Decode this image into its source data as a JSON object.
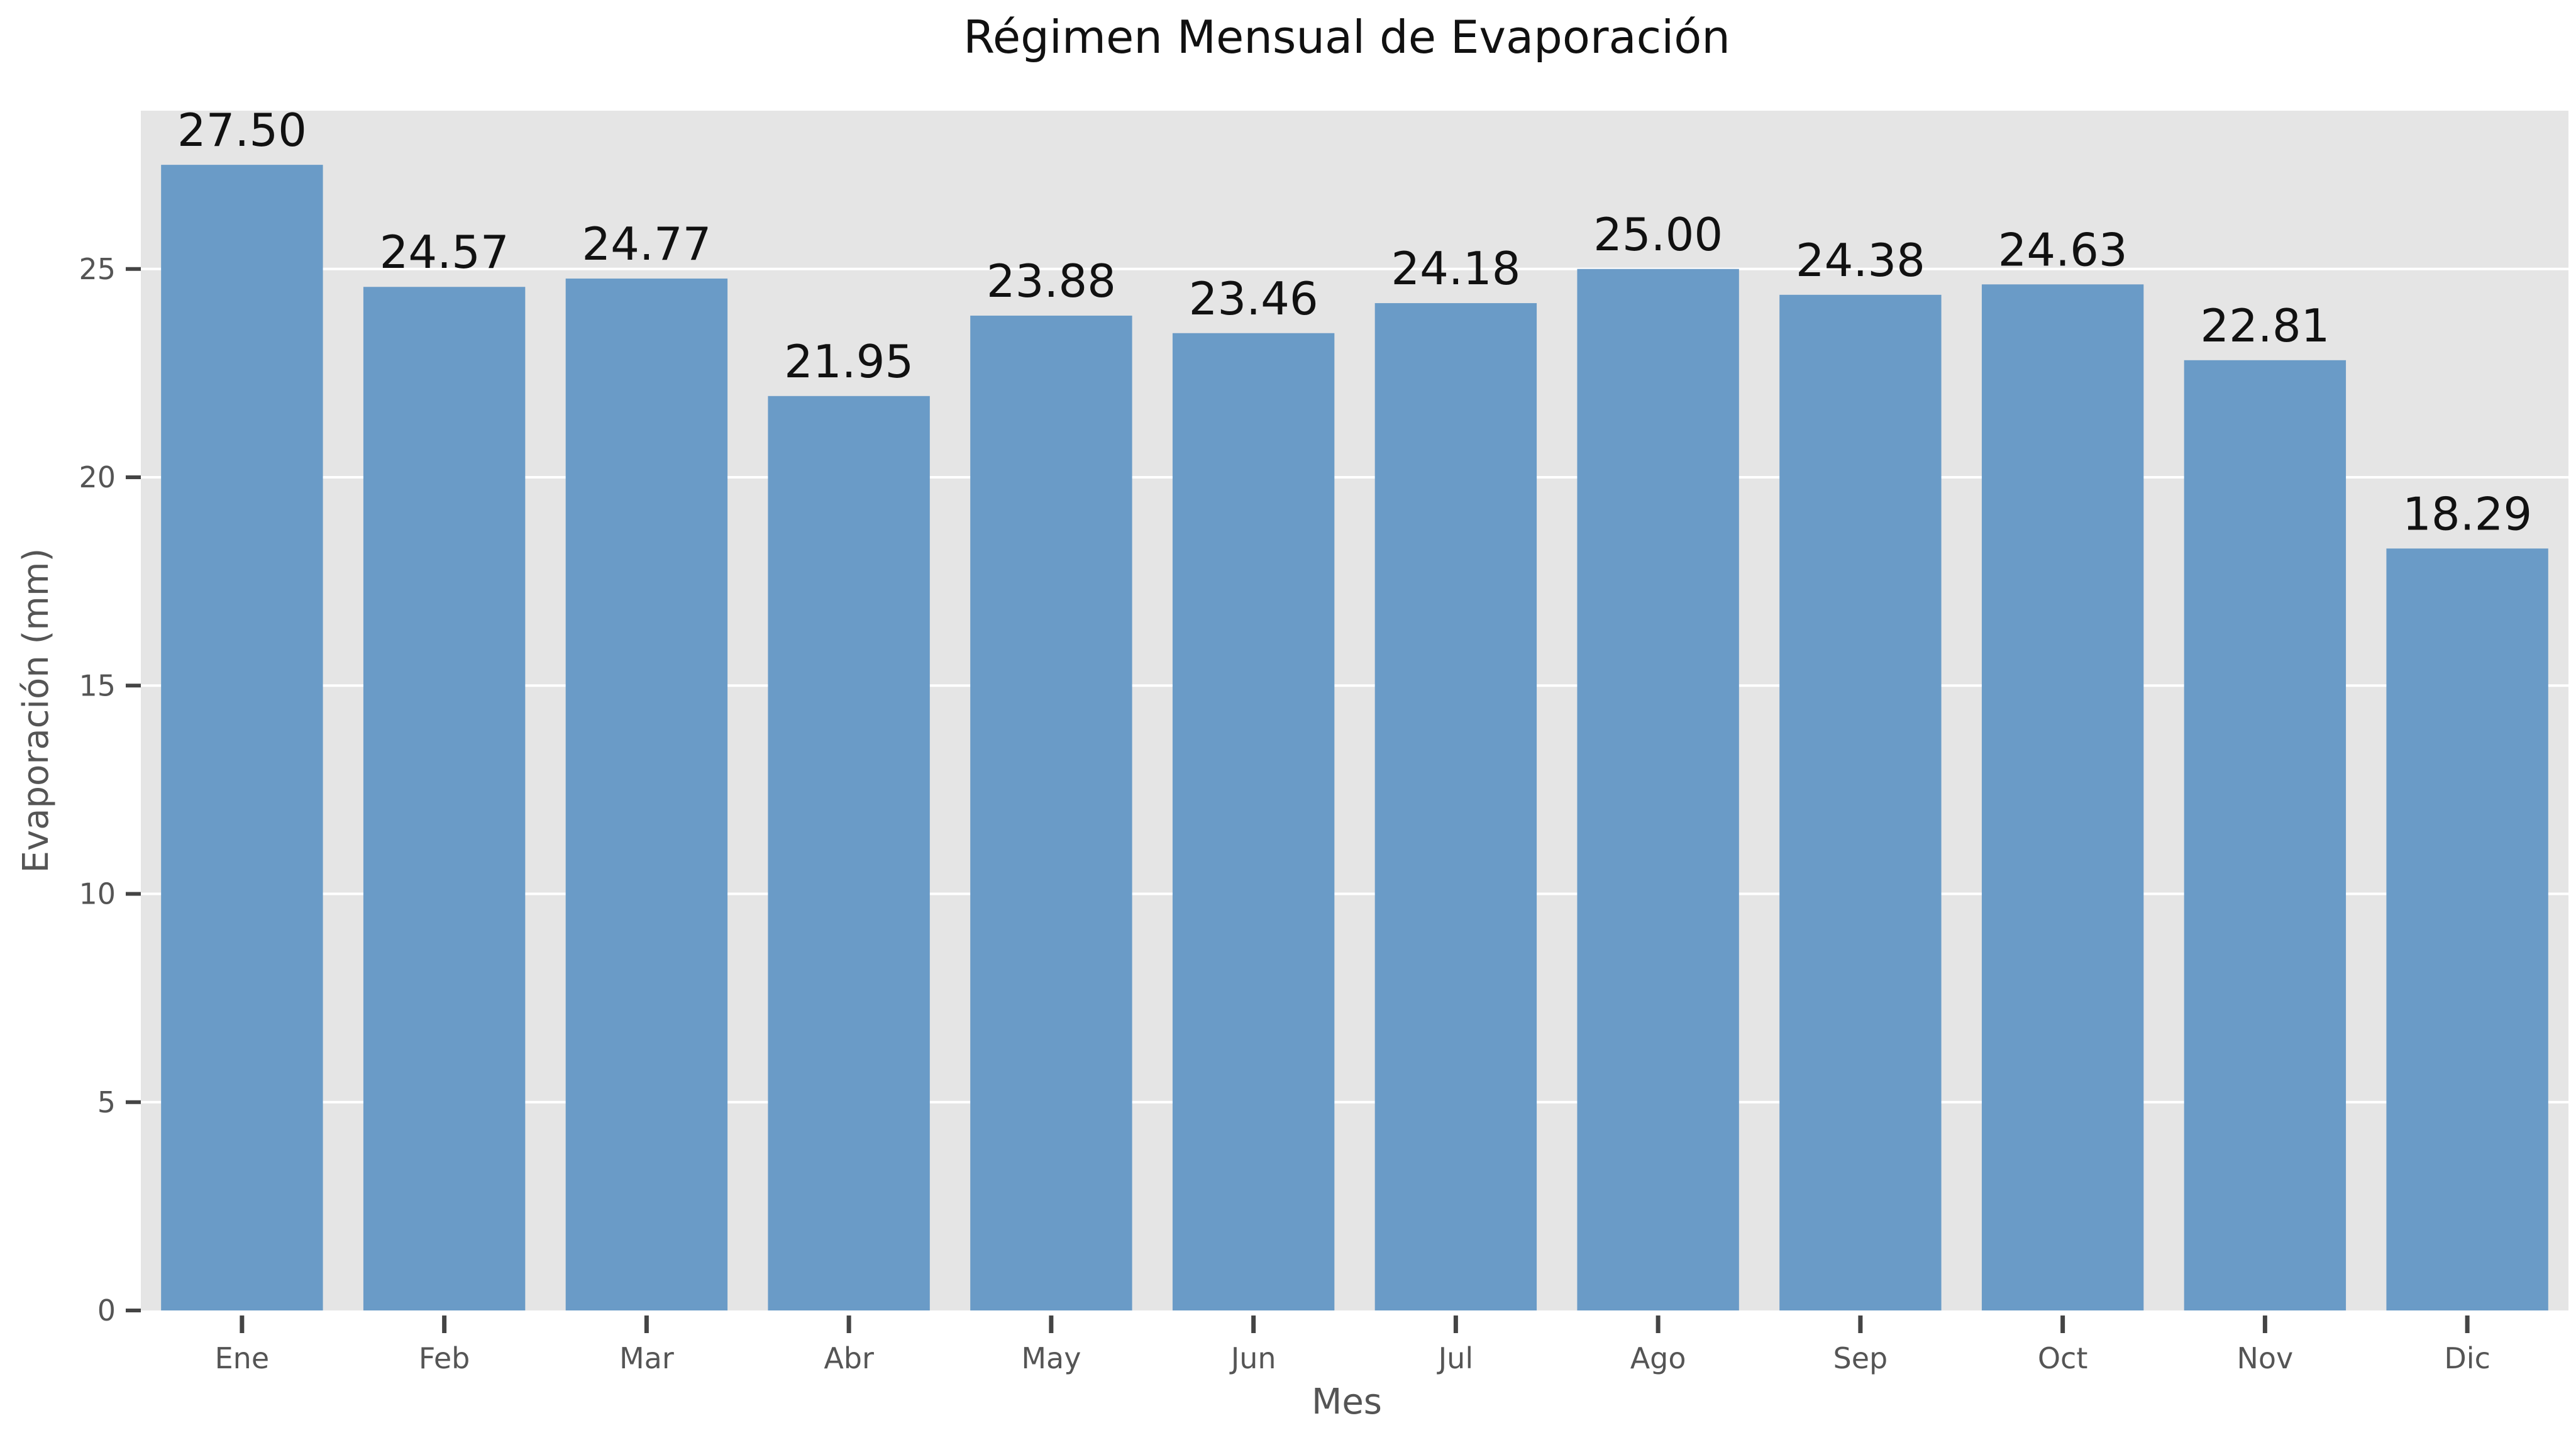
{
  "chart_data": {
    "type": "bar",
    "title": "Régimen Mensual de Evaporación",
    "xlabel": "Mes",
    "ylabel": "Evaporación (mm)",
    "categories": [
      "Ene",
      "Feb",
      "Mar",
      "Abr",
      "May",
      "Jun",
      "Jul",
      "Ago",
      "Sep",
      "Oct",
      "Nov",
      "Dic"
    ],
    "values": [
      27.5,
      24.57,
      24.77,
      21.95,
      23.88,
      23.46,
      24.18,
      25.0,
      24.38,
      24.63,
      22.81,
      18.29
    ],
    "value_labels": [
      "27.50",
      "24.57",
      "24.77",
      "21.95",
      "23.88",
      "23.46",
      "24.18",
      "25.00",
      "24.38",
      "24.63",
      "22.81",
      "18.29"
    ],
    "ylim": [
      0,
      28.8
    ],
    "yticks": [
      0,
      5,
      10,
      15,
      20,
      25
    ],
    "grid": true,
    "colors": {
      "bar": "#6a9bc7",
      "plot_background": "#e5e5e5",
      "grid": "#ffffff",
      "tick": "#444444"
    }
  }
}
